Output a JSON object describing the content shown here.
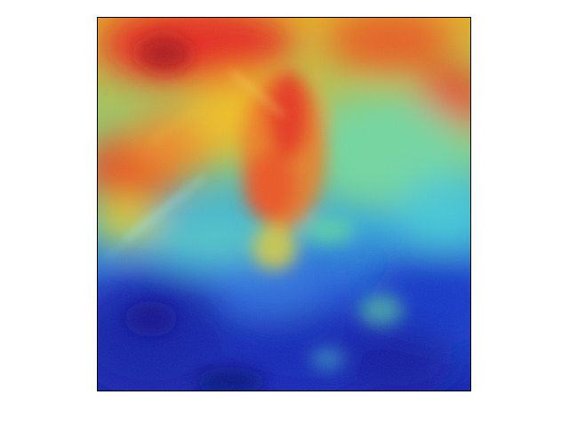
{
  "figure": {
    "background": "#ffffff",
    "frame_color": "#000000"
  },
  "image": {
    "description_icon": "heatmap-overlay-icon",
    "colormap": "jet",
    "colormap_stops": [
      "#00008f",
      "#0000ff",
      "#00ffff",
      "#ffff00",
      "#ff0000",
      "#800000"
    ]
  }
}
